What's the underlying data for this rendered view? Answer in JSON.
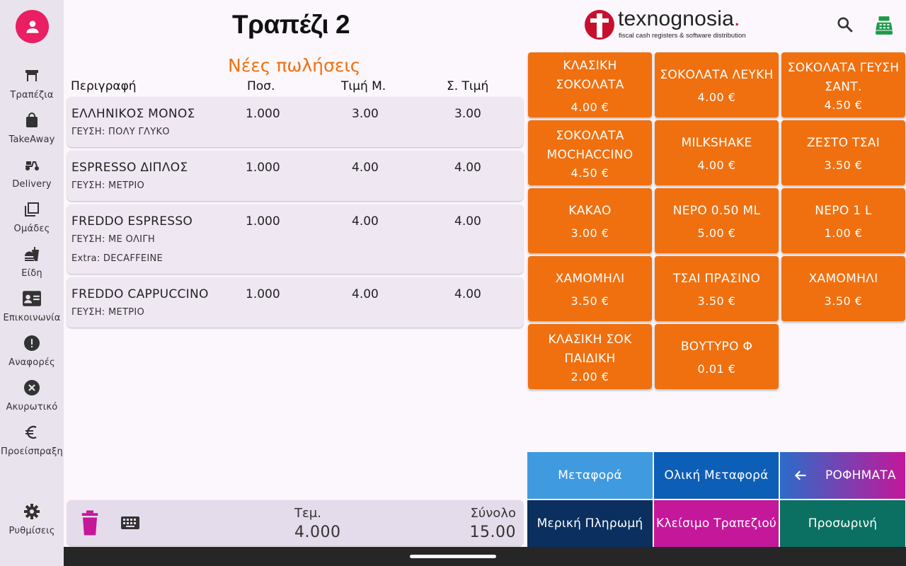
{
  "sidebar": {
    "items": [
      {
        "label": "Τραπέζια",
        "icon": "table-icon"
      },
      {
        "label": "TakeAway",
        "icon": "shopping-bag-icon"
      },
      {
        "label": "Delivery",
        "icon": "scooter-icon"
      },
      {
        "label": "Ομάδες",
        "icon": "groups-icon"
      },
      {
        "label": "Είδη",
        "icon": "fastfood-icon"
      },
      {
        "label": "Επικοινωνία",
        "icon": "contact-card-icon"
      },
      {
        "label": "Αναφορές",
        "icon": "report-icon"
      },
      {
        "label": "Ακυρωτικό",
        "icon": "cancel-icon"
      },
      {
        "label": "Προείσπραξη",
        "icon": "euro-icon"
      },
      {
        "label": "Ρυθμίσεις",
        "icon": "gear-icon"
      }
    ]
  },
  "header": {
    "title": "Τραπέζι 2",
    "logo_word": "texnognosia",
    "logo_dot": ".",
    "logo_tagline": "fiscal cash registers & software distribution"
  },
  "order": {
    "section_title": "Νέες πωλήσεις",
    "columns": [
      "Περιγραφή",
      "Ποσ.",
      "Τιμή Μ.",
      "Σ. Τιμή"
    ],
    "rows": [
      {
        "name": "ΕΛΛΗΝΙΚΟΣ ΜΟΝΟΣ",
        "qty": "1.000",
        "price": "3.00",
        "total": "3.00",
        "notes": [
          "ΓΕΥΣΗ: ΠΟΛΥ ΓΛΥΚΟ"
        ]
      },
      {
        "name": "ESPRESSO ΔΙΠΛΟΣ",
        "qty": "1.000",
        "price": "4.00",
        "total": "4.00",
        "notes": [
          "ΓΕΥΣΗ: ΜΕΤΡΙΟ"
        ]
      },
      {
        "name": "FREDDO ESPRESSO",
        "qty": "1.000",
        "price": "4.00",
        "total": "4.00",
        "notes": [
          "ΓΕΥΣΗ: ΜΕ ΟΛΙΓΗ",
          "Extra: DECAFFEINE"
        ]
      },
      {
        "name": "FREDDO CAPPUCCINO",
        "qty": "1.000",
        "price": "4.00",
        "total": "4.00",
        "notes": [
          "ΓΕΥΣΗ: ΜΕΤΡΙΟ"
        ]
      }
    ],
    "footer": {
      "items_label": "Τεμ.",
      "items_value": "4.000",
      "total_label": "Σύνολο",
      "total_value": "15.00"
    }
  },
  "products": [
    {
      "name": "ΚΛΑΣΙΚΗ ΣΟΚΟΛΑΤΑ",
      "price": "4.00 €"
    },
    {
      "name": "ΣΟΚΟΛΑΤΑ ΛΕΥΚΗ",
      "price": "4.00 €"
    },
    {
      "name": "ΣΟΚΟΛΑΤΑ ΓΕΥΣΗ ΣΑΝΤ.",
      "price": "4.50 €"
    },
    {
      "name": "ΣΟΚΟΛΑΤΑ MOCHACCINO",
      "price": "4.50 €"
    },
    {
      "name": "MILKSHAKE",
      "price": "4.00 €"
    },
    {
      "name": "ΖΕΣΤΟ ΤΣΑΙ",
      "price": "3.50 €"
    },
    {
      "name": "ΚΑΚΑΟ",
      "price": "3.00 €"
    },
    {
      "name": "ΝΕΡΟ 0.50 ML",
      "price": "5.00 €"
    },
    {
      "name": "ΝΕΡΟ 1 L",
      "price": "1.00 €"
    },
    {
      "name": "ΧΑΜΟΜΗΛΙ",
      "price": "3.50 €"
    },
    {
      "name": "ΤΣΑΙ ΠΡΑΣΙΝΟ",
      "price": "3.50 €"
    },
    {
      "name": "ΧΑΜΟΜΗΛΙ",
      "price": "3.50 €"
    },
    {
      "name": "ΚΛΑΣΙΚΗ ΣΟΚ ΠΑΙΔΙΚΗ",
      "price": "2.00 €"
    },
    {
      "name": "ΒΟΥΤΥΡΟ Φ",
      "price": "0.01 €"
    }
  ],
  "actions": {
    "transfer": "Μεταφορά",
    "full_transfer": "Ολική Μεταφορά",
    "category": "ΡΟΦΗΜΑΤΑ",
    "partial_payment": "Μερική Πληρωμή",
    "close_table": "Κλείσιμο Τραπεζιού",
    "temporary": "Προσωρινή"
  },
  "colors": {
    "accent": "#f07010",
    "transfer": "#3f9ae0",
    "full_transfer": "#0d5eb6",
    "partial_payment": "#0b2f5f",
    "close_table": "#c4179a",
    "temporary": "#0b7061",
    "category_from": "#2b6cc9",
    "category_to": "#c4179a"
  }
}
